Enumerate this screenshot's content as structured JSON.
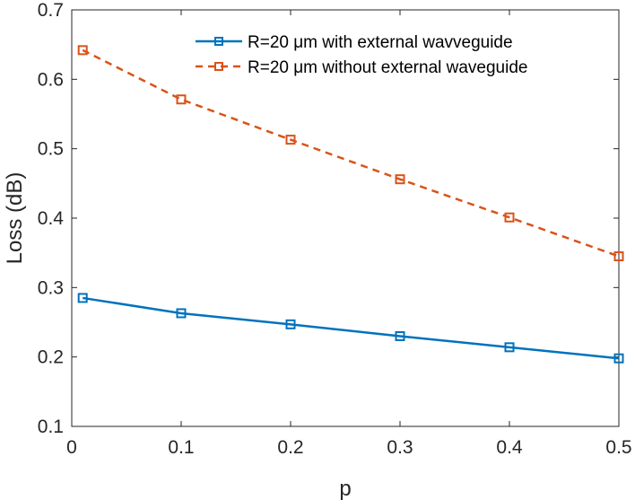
{
  "chart_data": {
    "type": "line",
    "title": "",
    "xlabel": "p",
    "ylabel": "Loss (dB)",
    "xlim": [
      0,
      0.5
    ],
    "ylim": [
      0.1,
      0.7
    ],
    "xticks": [
      "0",
      "0.1",
      "0.2",
      "0.3",
      "0.4",
      "0.5"
    ],
    "yticks": [
      "0.1",
      "0.2",
      "0.3",
      "0.4",
      "0.5",
      "0.6",
      "0.7"
    ],
    "grid": false,
    "legend_position": "top-right",
    "x": [
      0.01,
      0.1,
      0.2,
      0.3,
      0.4,
      0.5
    ],
    "series": [
      {
        "name": "R=20 μm with external wavveguide",
        "values": [
          0.285,
          0.263,
          0.247,
          0.23,
          0.214,
          0.198
        ],
        "color": "#0072BD",
        "line_style": "solid",
        "marker": "square"
      },
      {
        "name": "R=20 μm without external waveguide",
        "values": [
          0.642,
          0.571,
          0.513,
          0.456,
          0.401,
          0.345
        ],
        "color": "#D95319",
        "line_style": "dashed",
        "marker": "square"
      }
    ]
  }
}
